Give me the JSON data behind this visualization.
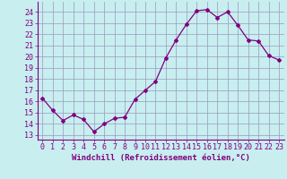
{
  "x": [
    0,
    1,
    2,
    3,
    4,
    5,
    6,
    7,
    8,
    9,
    10,
    11,
    12,
    13,
    14,
    15,
    16,
    17,
    18,
    19,
    20,
    21,
    22,
    23
  ],
  "y": [
    16.3,
    15.2,
    14.3,
    14.8,
    14.4,
    13.3,
    14.0,
    14.5,
    14.6,
    16.2,
    17.0,
    17.8,
    19.9,
    21.5,
    22.9,
    24.1,
    24.2,
    23.5,
    24.0,
    22.8,
    21.5,
    21.4,
    20.1,
    19.7
  ],
  "line_color": "#800080",
  "marker": "D",
  "marker_size": 2.0,
  "bg_color": "#c8eef0",
  "grid_color": "#9999bb",
  "xlabel": "Windchill (Refroidissement éolien,°C)",
  "ylabel_ticks": [
    13,
    14,
    15,
    16,
    17,
    18,
    19,
    20,
    21,
    22,
    23,
    24
  ],
  "ylim": [
    12.6,
    24.9
  ],
  "xlim": [
    -0.5,
    23.5
  ],
  "xlabel_fontsize": 6.5,
  "tick_fontsize": 6.0,
  "linewidth": 0.9
}
